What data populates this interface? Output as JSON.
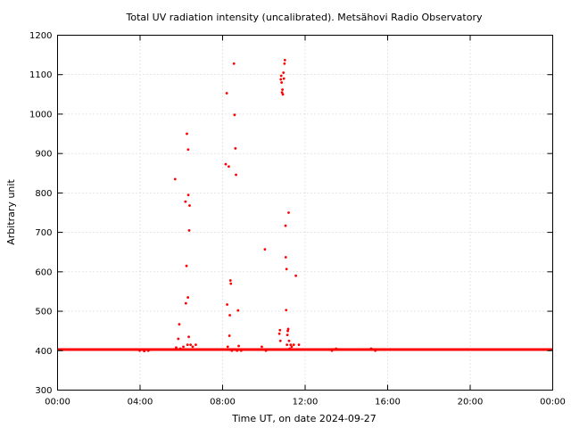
{
  "chart_data": {
    "type": "scatter",
    "title": "Total UV radiation intensity (uncalibrated). Metsähovi Radio Observatory",
    "xlabel": "Time UT, on date 2024-09-27",
    "ylabel": "Arbitrary unit",
    "xlim": [
      0,
      24
    ],
    "ylim": [
      300,
      1200
    ],
    "x_ticks": [
      0,
      4,
      8,
      12,
      16,
      20,
      24
    ],
    "x_tick_labels": [
      "00:00",
      "04:00",
      "08:00",
      "12:00",
      "16:00",
      "20:00",
      "00:00"
    ],
    "y_ticks": [
      300,
      400,
      500,
      600,
      700,
      800,
      900,
      1000,
      1100,
      1200
    ],
    "y_tick_labels": [
      "300",
      "400",
      "500",
      "600",
      "700",
      "800",
      "900",
      "1000",
      "1100",
      "1200"
    ],
    "grid": true,
    "series_color": "#ff0000",
    "baseline": {
      "x_start": 0,
      "x_end": 24,
      "y": 403
    },
    "points": [
      [
        3.98,
        400
      ],
      [
        4.2,
        399
      ],
      [
        4.4,
        400
      ],
      [
        5.7,
        835
      ],
      [
        5.75,
        408
      ],
      [
        5.85,
        430
      ],
      [
        5.9,
        467
      ],
      [
        5.95,
        405
      ],
      [
        6.1,
        410
      ],
      [
        6.2,
        778
      ],
      [
        6.22,
        520
      ],
      [
        6.25,
        615
      ],
      [
        6.27,
        950
      ],
      [
        6.3,
        415
      ],
      [
        6.32,
        535
      ],
      [
        6.33,
        910
      ],
      [
        6.34,
        795
      ],
      [
        6.36,
        435
      ],
      [
        6.38,
        705
      ],
      [
        6.4,
        768
      ],
      [
        6.45,
        415
      ],
      [
        6.55,
        410
      ],
      [
        6.7,
        415
      ],
      [
        8.15,
        873
      ],
      [
        8.2,
        1053
      ],
      [
        8.22,
        517
      ],
      [
        8.25,
        410
      ],
      [
        8.3,
        867
      ],
      [
        8.33,
        438
      ],
      [
        8.35,
        490
      ],
      [
        8.38,
        578
      ],
      [
        8.4,
        570
      ],
      [
        8.45,
        400
      ],
      [
        8.55,
        1128
      ],
      [
        8.58,
        998
      ],
      [
        8.62,
        913
      ],
      [
        8.65,
        846
      ],
      [
        8.7,
        400
      ],
      [
        8.75,
        502
      ],
      [
        8.78,
        412
      ],
      [
        8.9,
        400
      ],
      [
        9.9,
        410
      ],
      [
        10.05,
        657
      ],
      [
        10.1,
        400
      ],
      [
        10.75,
        443
      ],
      [
        10.78,
        452
      ],
      [
        10.8,
        425
      ],
      [
        10.82,
        1088
      ],
      [
        10.84,
        1097
      ],
      [
        10.86,
        1080
      ],
      [
        10.88,
        1055
      ],
      [
        10.9,
        1062
      ],
      [
        10.92,
        1050
      ],
      [
        10.95,
        1105
      ],
      [
        10.97,
        1090
      ],
      [
        11.0,
        1128
      ],
      [
        11.02,
        1137
      ],
      [
        11.05,
        717
      ],
      [
        11.06,
        637
      ],
      [
        11.08,
        503
      ],
      [
        11.1,
        607
      ],
      [
        11.12,
        415
      ],
      [
        11.14,
        440
      ],
      [
        11.16,
        450
      ],
      [
        11.18,
        455
      ],
      [
        11.2,
        750
      ],
      [
        11.22,
        425
      ],
      [
        11.25,
        405
      ],
      [
        11.3,
        415
      ],
      [
        11.35,
        410
      ],
      [
        11.45,
        415
      ],
      [
        11.55,
        590
      ],
      [
        11.7,
        415
      ],
      [
        13.3,
        400
      ],
      [
        13.5,
        405
      ],
      [
        15.2,
        405
      ],
      [
        15.4,
        400
      ]
    ]
  }
}
